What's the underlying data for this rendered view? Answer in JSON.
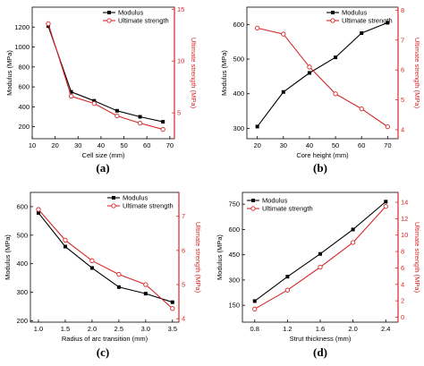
{
  "chart_data": [
    {
      "type": "line",
      "panel_label": "(a)",
      "xlabel": "Cell size (mm)",
      "ylabel": "Modulus (MPa)",
      "ylabel_right": "Ultimate strength (MPa)",
      "x": [
        17,
        27,
        37,
        47,
        57,
        67
      ],
      "xticks": [
        10,
        20,
        30,
        40,
        50,
        60,
        70
      ],
      "yticks": [
        200,
        400,
        600,
        800,
        1000,
        1200
      ],
      "yticks_right": [
        5,
        10,
        15
      ],
      "xlim": [
        10,
        72
      ],
      "ylim": [
        80,
        1400
      ],
      "ylim_right": [
        2.5,
        15.2
      ],
      "legend": "top-right",
      "series": [
        {
          "name": "Modulus",
          "axis": "left",
          "color": "#000000",
          "marker": "square",
          "values": [
            1210,
            550,
            460,
            360,
            300,
            250
          ]
        },
        {
          "name": "Ultimate strength",
          "axis": "right",
          "color": "#d62728",
          "marker": "circle",
          "values": [
            13.6,
            6.6,
            5.9,
            4.7,
            4.0,
            3.4
          ]
        }
      ]
    },
    {
      "type": "line",
      "panel_label": "(b)",
      "xlabel": "Core height (mm)",
      "ylabel": "Modulus (MPa)",
      "ylabel_right": "Ultimate strength (MPa)",
      "x": [
        20,
        30,
        40,
        50,
        60,
        70
      ],
      "xticks": [
        20,
        30,
        40,
        50,
        60,
        70
      ],
      "yticks": [
        300,
        400,
        500,
        600
      ],
      "yticks_right": [
        4,
        5,
        6,
        7,
        8
      ],
      "xlim": [
        16,
        74
      ],
      "ylim": [
        270,
        650
      ],
      "ylim_right": [
        3.7,
        8.1
      ],
      "legend": "top-right",
      "series": [
        {
          "name": "Modulus",
          "axis": "left",
          "color": "#000000",
          "marker": "square",
          "values": [
            305,
            405,
            460,
            505,
            575,
            605
          ]
        },
        {
          "name": "Ultimate strength",
          "axis": "right",
          "color": "#d62728",
          "marker": "circle",
          "values": [
            7.4,
            7.2,
            6.1,
            5.2,
            4.7,
            4.1
          ]
        }
      ]
    },
    {
      "type": "line",
      "panel_label": "(c)",
      "xlabel": "Radius of arc transition (mm)",
      "ylabel": "Modulus (MPa)",
      "ylabel_right": "Ultimate strength (MPa)",
      "x": [
        1.0,
        1.5,
        2.0,
        2.5,
        3.0,
        3.5
      ],
      "xticks": [
        "1.0",
        "1.5",
        "2.0",
        "2.5",
        "3.0",
        "3.5"
      ],
      "yticks": [
        200,
        300,
        400,
        500,
        600
      ],
      "yticks_right": [
        4,
        5,
        6,
        7
      ],
      "xlim": [
        0.85,
        3.62
      ],
      "ylim": [
        195,
        650
      ],
      "ylim_right": [
        3.9,
        7.7
      ],
      "legend": "top-right",
      "series": [
        {
          "name": "Modulus",
          "axis": "left",
          "color": "#000000",
          "marker": "square",
          "values": [
            578,
            460,
            385,
            318,
            295,
            265
          ]
        },
        {
          "name": "Ultimate strength",
          "axis": "right",
          "color": "#d62728",
          "marker": "circle",
          "values": [
            7.2,
            6.3,
            5.7,
            5.3,
            5.0,
            4.3
          ]
        }
      ]
    },
    {
      "type": "line",
      "panel_label": "(d)",
      "xlabel": "Strut thickness (mm)",
      "ylabel": "Modulus (MPa)",
      "ylabel_right": "Ultimate strength (MPa)",
      "x": [
        0.8,
        1.2,
        1.6,
        2.0,
        2.4
      ],
      "xticks": [
        "0.8",
        "1.2",
        "1.6",
        "2.0",
        "2.4"
      ],
      "yticks": [
        150,
        300,
        450,
        600,
        750
      ],
      "yticks_right": [
        0,
        2,
        4,
        6,
        8,
        10,
        12,
        14
      ],
      "xlim": [
        0.65,
        2.55
      ],
      "ylim": [
        50,
        820
      ],
      "ylim_right": [
        -0.6,
        15.2
      ],
      "legend": "top-left",
      "series": [
        {
          "name": "Modulus",
          "axis": "left",
          "color": "#000000",
          "marker": "square",
          "values": [
            175,
            320,
            455,
            600,
            765
          ]
        },
        {
          "name": "Ultimate strength",
          "axis": "right",
          "color": "#d62728",
          "marker": "circle",
          "values": [
            1.0,
            3.3,
            6.1,
            9.1,
            13.5
          ]
        }
      ]
    }
  ]
}
